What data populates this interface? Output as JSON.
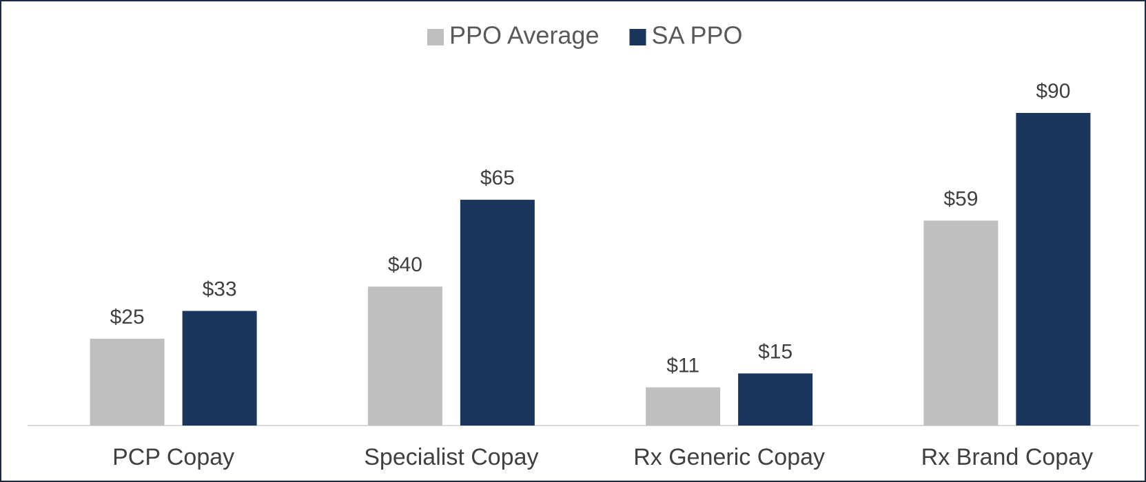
{
  "chart_data": {
    "type": "bar",
    "categories": [
      "PCP Copay",
      "Specialist Copay",
      "Rx Generic Copay",
      "Rx Brand Copay"
    ],
    "series": [
      {
        "name": "PPO Average",
        "color": "#bfbfbf",
        "values": [
          25,
          40,
          11,
          59
        ],
        "value_labels": [
          "$25",
          "$40",
          "$11",
          "$59"
        ]
      },
      {
        "name": "SA PPO",
        "color": "#1b365d",
        "values": [
          33,
          65,
          15,
          90
        ],
        "value_labels": [
          "$33",
          "$65",
          "$15",
          "$90"
        ]
      }
    ],
    "legend": "top",
    "grid": false
  }
}
